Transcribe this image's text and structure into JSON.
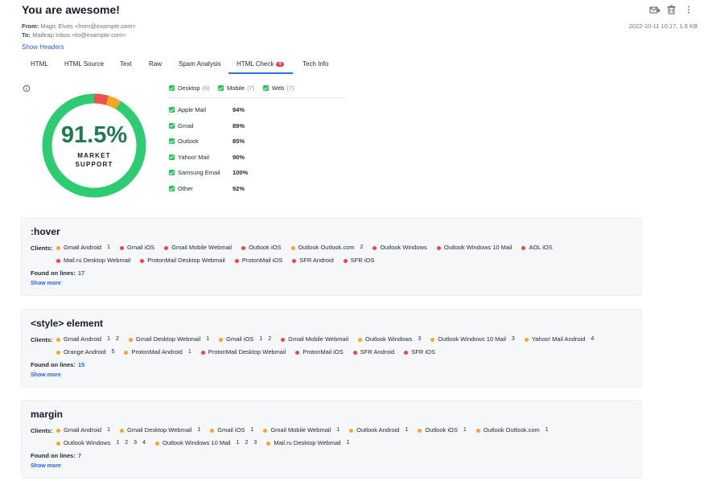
{
  "header": {
    "title": "You are awesome!",
    "from_label": "From:",
    "from": "Magic Elves <from@example.com>",
    "to_label": "To:",
    "to": "Mailtrap Inbox <to@example.com>",
    "date": "2022-10-11 10:17, 1.6 KB",
    "show_headers": "Show Headers"
  },
  "tabs": [
    {
      "label": "HTML"
    },
    {
      "label": "HTML Source"
    },
    {
      "label": "Text"
    },
    {
      "label": "Raw"
    },
    {
      "label": "Spam Analysis"
    },
    {
      "label": "HTML Check",
      "badge": "4",
      "active": true
    },
    {
      "label": "Tech Info"
    }
  ],
  "summary": {
    "score": "91.5%",
    "caption_1": "MARKET",
    "caption_2": "SUPPORT"
  },
  "filters": [
    {
      "label": "Desktop",
      "count": "(6)"
    },
    {
      "label": "Mobile",
      "count": "(7)"
    },
    {
      "label": "Web",
      "count": "(7)"
    }
  ],
  "client_support": [
    {
      "name": "Apple Mail",
      "value": "94%"
    },
    {
      "name": "Gmail",
      "value": "89%"
    },
    {
      "name": "Outlook",
      "value": "85%"
    },
    {
      "name": "Yahoo! Mail",
      "value": "90%"
    },
    {
      "name": "Samsung Email",
      "value": "100%"
    },
    {
      "name": "Other",
      "value": "92%"
    }
  ],
  "issues": [
    {
      "title": ":hover",
      "clients_label": "Clients:",
      "clients": [
        {
          "name": "Gmail Android",
          "color": "#f5a623",
          "lines": [
            1
          ]
        },
        {
          "name": "Gmail iOS",
          "color": "#ef4444",
          "lines": []
        },
        {
          "name": "Gmail Mobile Webmail",
          "color": "#ef4444",
          "lines": []
        },
        {
          "name": "Outlook iOS",
          "color": "#ef4444",
          "lines": []
        },
        {
          "name": "Outlook Outlook.com",
          "color": "#f5a623",
          "lines": [
            2
          ]
        },
        {
          "name": "Outlook Windows",
          "color": "#ef4444",
          "lines": []
        },
        {
          "name": "Outlook Windows 10 Mail",
          "color": "#ef4444",
          "lines": []
        },
        {
          "name": "AOL iOS",
          "color": "#ef4444",
          "lines": []
        },
        {
          "name": "Mail.ru Desktop Webmail",
          "color": "#ef4444",
          "lines": []
        },
        {
          "name": "ProtonMail Desktop Webmail",
          "color": "#ef4444",
          "lines": []
        },
        {
          "name": "ProtonMail iOS",
          "color": "#ef4444",
          "lines": []
        },
        {
          "name": "SFR Android",
          "color": "#ef4444",
          "lines": []
        },
        {
          "name": "SFR iOS",
          "color": "#ef4444",
          "lines": []
        }
      ],
      "found_label": "Found on lines:",
      "found": "17",
      "more": "Show more"
    },
    {
      "title": "<style> element",
      "clients_label": "Clients:",
      "clients": [
        {
          "name": "Gmail Android",
          "color": "#f5a623",
          "lines": [
            1,
            2
          ]
        },
        {
          "name": "Gmail Desktop Webmail",
          "color": "#f5a623",
          "lines": [
            1
          ]
        },
        {
          "name": "Gmail iOS",
          "color": "#f5a623",
          "lines": [
            1,
            2
          ]
        },
        {
          "name": "Gmail Mobile Webmail",
          "color": "#ef4444",
          "lines": []
        },
        {
          "name": "Outlook Windows",
          "color": "#f5a623",
          "lines": [
            3
          ]
        },
        {
          "name": "Outlook Windows 10 Mail",
          "color": "#f5a623",
          "lines": [
            3
          ]
        },
        {
          "name": "Yahoo! Mail Android",
          "color": "#f5a623",
          "lines": [
            4
          ]
        },
        {
          "name": "Orange Android",
          "color": "#f5a623",
          "lines": [
            5
          ]
        },
        {
          "name": "ProtonMail Android",
          "color": "#f5a623",
          "lines": [
            1
          ]
        },
        {
          "name": "ProtonMail Desktop Webmail",
          "color": "#ef4444",
          "lines": []
        },
        {
          "name": "ProtonMail iOS",
          "color": "#ef4444",
          "lines": []
        },
        {
          "name": "SFR Android",
          "color": "#ef4444",
          "lines": []
        },
        {
          "name": "SFR iOS",
          "color": "#ef4444",
          "lines": []
        }
      ],
      "found_label": "Found on lines:",
      "found": "15",
      "more": "Show more"
    },
    {
      "title": "margin",
      "clients_label": "Clients:",
      "clients": [
        {
          "name": "Gmail Android",
          "color": "#f5a623",
          "lines": [
            1
          ]
        },
        {
          "name": "Gmail Desktop Webmail",
          "color": "#f5a623",
          "lines": [
            1
          ]
        },
        {
          "name": "Gmail iOS",
          "color": "#f5a623",
          "lines": [
            1
          ]
        },
        {
          "name": "Gmail Mobile Webmail",
          "color": "#f5a623",
          "lines": [
            1
          ]
        },
        {
          "name": "Outlook Android",
          "color": "#f5a623",
          "lines": [
            1
          ]
        },
        {
          "name": "Outlook iOS",
          "color": "#f5a623",
          "lines": [
            1
          ]
        },
        {
          "name": "Outlook Outlook.com",
          "color": "#f5a623",
          "lines": [
            1
          ]
        },
        {
          "name": "Outlook Windows",
          "color": "#f5a623",
          "lines": [
            1,
            2,
            3,
            4
          ]
        },
        {
          "name": "Outlook Windows 10 Mail",
          "color": "#f5a623",
          "lines": [
            1,
            2,
            3
          ]
        },
        {
          "name": "Mail.ru Desktop Webmail",
          "color": "#f5a623",
          "lines": [
            1
          ]
        }
      ],
      "found_label": "Found on lines:",
      "found": "7",
      "more": "Show more"
    }
  ]
}
